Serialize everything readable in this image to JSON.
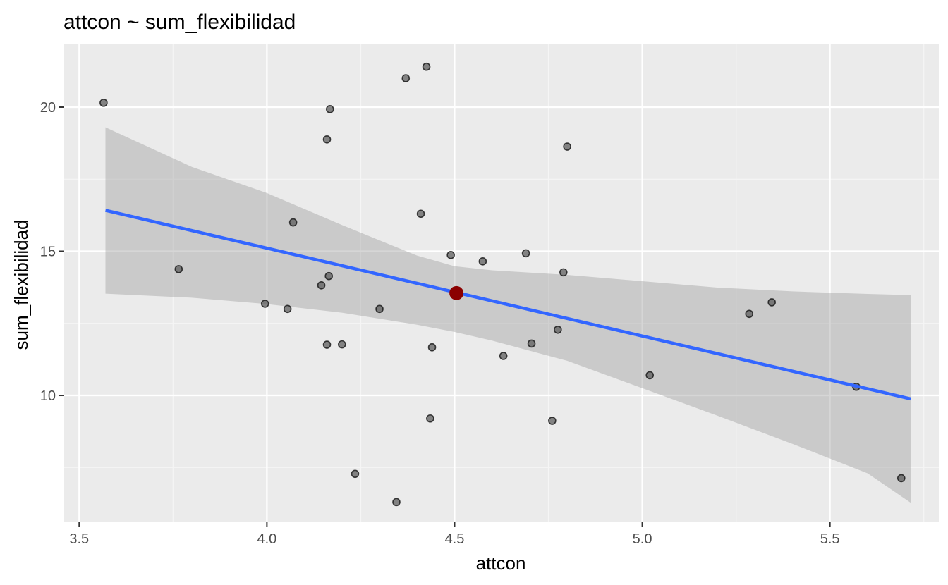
{
  "chart_data": {
    "type": "scatter",
    "title": "attcon ~ sum_flexibilidad",
    "xlabel": "attcon",
    "ylabel": "sum_flexibilidad",
    "xlim": [
      3.46,
      5.79
    ],
    "ylim": [
      5.6,
      22.2
    ],
    "x_ticks": [
      "3.5",
      "4.0",
      "4.5",
      "5.0",
      "5.5"
    ],
    "y_ticks": [
      "10",
      "15",
      "20"
    ],
    "grid": true,
    "legend": "none",
    "points": [
      {
        "x": 3.565,
        "y": 20.15
      },
      {
        "x": 3.765,
        "y": 14.38
      },
      {
        "x": 3.995,
        "y": 13.18
      },
      {
        "x": 4.055,
        "y": 13.0
      },
      {
        "x": 4.07,
        "y": 16.0
      },
      {
        "x": 4.145,
        "y": 13.82
      },
      {
        "x": 4.16,
        "y": 18.88
      },
      {
        "x": 4.16,
        "y": 11.76
      },
      {
        "x": 4.165,
        "y": 14.14
      },
      {
        "x": 4.168,
        "y": 19.93
      },
      {
        "x": 4.2,
        "y": 11.77
      },
      {
        "x": 4.235,
        "y": 7.28
      },
      {
        "x": 4.3,
        "y": 13.0
      },
      {
        "x": 4.345,
        "y": 6.3
      },
      {
        "x": 4.37,
        "y": 21.0
      },
      {
        "x": 4.41,
        "y": 16.3
      },
      {
        "x": 4.425,
        "y": 21.4
      },
      {
        "x": 4.435,
        "y": 9.2
      },
      {
        "x": 4.44,
        "y": 11.67
      },
      {
        "x": 4.49,
        "y": 14.87
      },
      {
        "x": 4.575,
        "y": 14.65
      },
      {
        "x": 4.63,
        "y": 11.37
      },
      {
        "x": 4.69,
        "y": 14.93
      },
      {
        "x": 4.705,
        "y": 11.8
      },
      {
        "x": 4.76,
        "y": 9.12
      },
      {
        "x": 4.775,
        "y": 12.28
      },
      {
        "x": 4.79,
        "y": 14.27
      },
      {
        "x": 4.8,
        "y": 18.63
      },
      {
        "x": 5.02,
        "y": 10.7
      },
      {
        "x": 5.285,
        "y": 12.83
      },
      {
        "x": 5.345,
        "y": 13.23
      },
      {
        "x": 5.57,
        "y": 10.3
      },
      {
        "x": 5.69,
        "y": 7.13
      }
    ],
    "mean_point": {
      "x": 4.505,
      "y": 13.55
    },
    "regression_line": {
      "x": [
        3.57,
        5.715
      ],
      "y": [
        16.42,
        9.88
      ]
    },
    "confidence_band": {
      "x": [
        3.57,
        3.8,
        4.0,
        4.2,
        4.4,
        4.5,
        4.6,
        4.8,
        5.0,
        5.2,
        5.4,
        5.6,
        5.715
      ],
      "lower": [
        13.53,
        13.39,
        13.17,
        12.87,
        12.45,
        12.2,
        11.9,
        11.2,
        10.25,
        9.3,
        8.32,
        7.3,
        6.28
      ],
      "upper": [
        19.3,
        17.93,
        17.02,
        15.91,
        14.85,
        14.48,
        14.34,
        14.18,
        13.96,
        13.74,
        13.61,
        13.52,
        13.48
      ]
    },
    "colors": {
      "panel": "#ebebeb",
      "grid_major": "#ffffff",
      "grid_minor": "#f5f5f5",
      "points": "#555555",
      "line": "#3366ff",
      "band": "#cccccc",
      "mean_point": "#8b0000"
    }
  }
}
